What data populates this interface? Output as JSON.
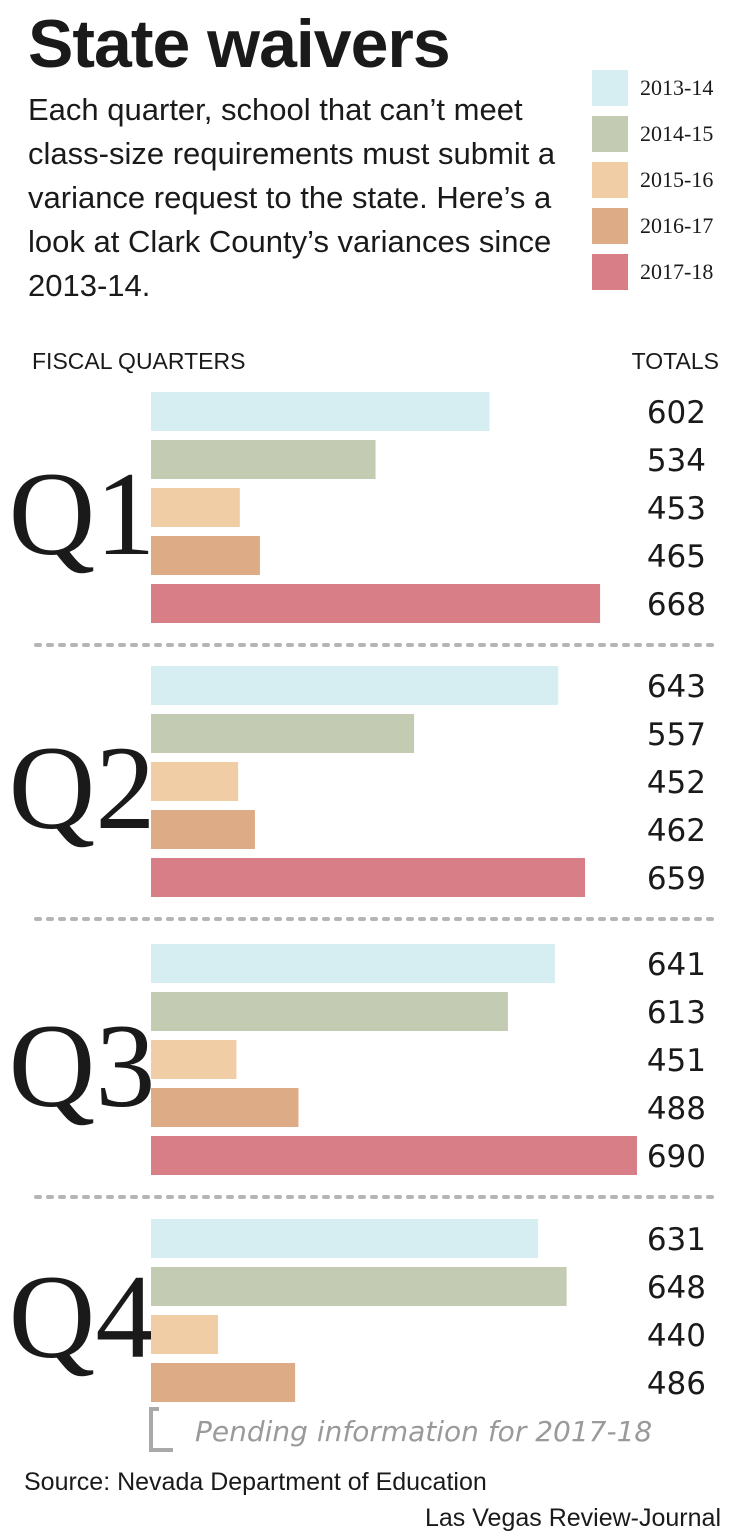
{
  "title": "State waivers",
  "subtitle": "Each quarter, school that can’t meet class-size requirements must submit a variance request to the state. Here’s a look at Clark County’s variances since 2013-14.",
  "headers": {
    "left": "FISCAL QUARTERS",
    "right": "TOTALS"
  },
  "source": "Source: Nevada Department of Education",
  "credit": "Las Vegas Review-Journal",
  "colors": {
    "2013-14": "#d6eef2",
    "2014-15": "#c3ccb2",
    "2015-16": "#f1cda6",
    "2016-17": "#ddab85",
    "2017-18": "#d77e86",
    "note": "#a9a9a9",
    "divider": "#b5b5b5"
  },
  "chart_data": {
    "type": "bar",
    "orientation": "horizontal",
    "categories": [
      "Q1",
      "Q2",
      "Q3",
      "Q4"
    ],
    "series": [
      {
        "name": "2013-14",
        "values": [
          602,
          643,
          641,
          631
        ]
      },
      {
        "name": "2014-15",
        "values": [
          534,
          557,
          613,
          648
        ]
      },
      {
        "name": "2015-16",
        "values": [
          453,
          452,
          451,
          440
        ]
      },
      {
        "name": "2016-17",
        "values": [
          465,
          462,
          488,
          486
        ]
      },
      {
        "name": "2017-18",
        "values": [
          668,
          659,
          690,
          null
        ]
      }
    ],
    "xlim": [
      400,
      693
    ],
    "pending_note": "Pending information for 2017-18",
    "legend": "top-right",
    "grid": false
  }
}
